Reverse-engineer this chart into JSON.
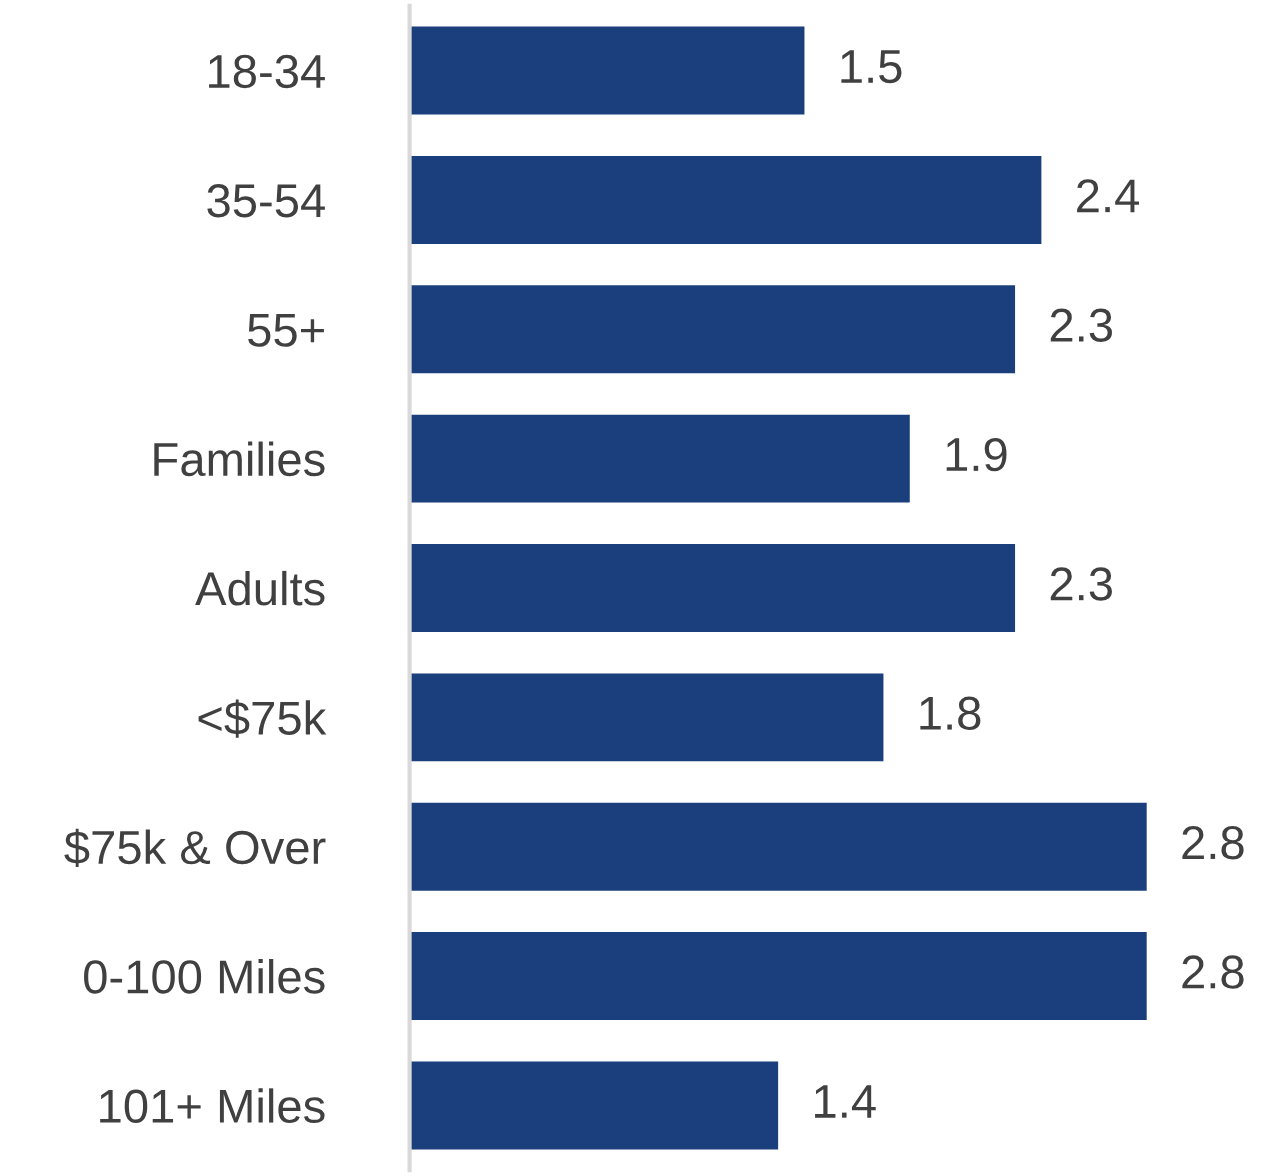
{
  "chart_data": {
    "type": "bar",
    "orientation": "horizontal",
    "categories": [
      "18-34",
      "35-54",
      "55+",
      "Families",
      "Adults",
      "<$75k",
      "$75k & Over",
      "0-100 Miles",
      "101+ Miles"
    ],
    "values": [
      1.5,
      2.4,
      2.3,
      1.9,
      2.3,
      1.8,
      2.8,
      2.8,
      1.4
    ],
    "color": "#1a3f7c",
    "data_labels": true,
    "grid": false,
    "legend": false,
    "tick_labels": "y"
  }
}
